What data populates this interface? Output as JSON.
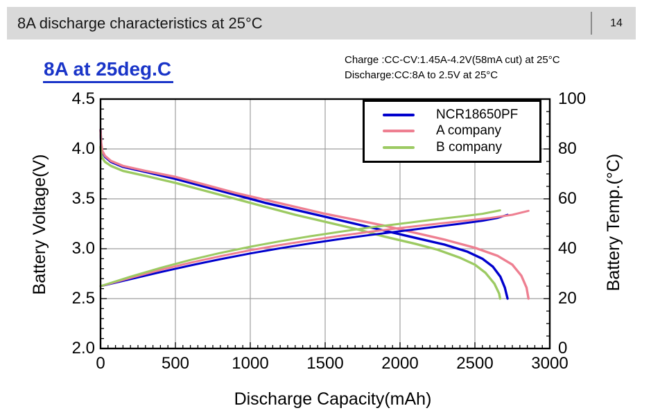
{
  "header": {
    "title": "8A discharge characteristics at 25°C",
    "page_number": "14",
    "bg": "#d9d9d9"
  },
  "chart_header": {
    "title": "8A at 25deg.C",
    "title_color": "#1a35c8",
    "conditions": [
      "Charge :CC-CV:1.45A-4.2V(58mA cut) at 25°C",
      "Discharge:CC:8A to 2.5V at 25°C"
    ]
  },
  "chart_data": {
    "type": "line",
    "title": "8A at 25deg.C",
    "xlabel": "Discharge Capacity(mAh)",
    "ylabel_left": "Battery Voltage(V)",
    "ylabel_right": "Battery Temp.(°C)",
    "xlim": [
      0,
      3000
    ],
    "ylim_left": [
      2.0,
      4.5
    ],
    "ylim_right": [
      0,
      100
    ],
    "xticks": [
      "0",
      "500",
      "1000",
      "1500",
      "2000",
      "2500",
      "3000"
    ],
    "yticks_left": [
      "4.5",
      "4.0",
      "3.5",
      "3.0",
      "2.5",
      "2.0"
    ],
    "yticks_right": [
      "100",
      "80",
      "60",
      "40",
      "20",
      "0"
    ],
    "grid": true,
    "grid_color": "#9e9e9e",
    "legend": {
      "position": "top-right",
      "entries": [
        {
          "label": "NCR18650PF",
          "color": "#0000cd"
        },
        {
          "label": "A company",
          "color": "#ee7f91"
        },
        {
          "label": "B company",
          "color": "#9cca62"
        }
      ]
    },
    "series": [
      {
        "name": "NCR18650PF voltage",
        "axis": "left",
        "color": "#0000cd",
        "width": 3.4,
        "points": [
          [
            0,
            4.19
          ],
          [
            4,
            4.05
          ],
          [
            12,
            3.97
          ],
          [
            30,
            3.92
          ],
          [
            70,
            3.87
          ],
          [
            150,
            3.82
          ],
          [
            300,
            3.77
          ],
          [
            500,
            3.7
          ],
          [
            700,
            3.62
          ],
          [
            900,
            3.54
          ],
          [
            1100,
            3.46
          ],
          [
            1300,
            3.39
          ],
          [
            1500,
            3.32
          ],
          [
            1700,
            3.25
          ],
          [
            1900,
            3.18
          ],
          [
            2100,
            3.11
          ],
          [
            2300,
            3.04
          ],
          [
            2450,
            2.97
          ],
          [
            2550,
            2.9
          ],
          [
            2620,
            2.82
          ],
          [
            2670,
            2.72
          ],
          [
            2700,
            2.61
          ],
          [
            2718,
            2.5
          ]
        ]
      },
      {
        "name": "A company voltage",
        "axis": "left",
        "color": "#ee7f91",
        "width": 3.4,
        "points": [
          [
            0,
            4.19
          ],
          [
            4,
            4.06
          ],
          [
            12,
            3.98
          ],
          [
            30,
            3.93
          ],
          [
            70,
            3.88
          ],
          [
            150,
            3.83
          ],
          [
            300,
            3.78
          ],
          [
            500,
            3.72
          ],
          [
            700,
            3.64
          ],
          [
            900,
            3.56
          ],
          [
            1100,
            3.49
          ],
          [
            1300,
            3.42
          ],
          [
            1500,
            3.35
          ],
          [
            1700,
            3.29
          ],
          [
            1900,
            3.23
          ],
          [
            2100,
            3.16
          ],
          [
            2300,
            3.09
          ],
          [
            2500,
            3.01
          ],
          [
            2650,
            2.93
          ],
          [
            2750,
            2.84
          ],
          [
            2810,
            2.73
          ],
          [
            2845,
            2.61
          ],
          [
            2858,
            2.5
          ]
        ]
      },
      {
        "name": "B company voltage",
        "axis": "left",
        "color": "#9cca62",
        "width": 3.4,
        "points": [
          [
            0,
            4.02
          ],
          [
            4,
            3.95
          ],
          [
            12,
            3.91
          ],
          [
            30,
            3.87
          ],
          [
            70,
            3.83
          ],
          [
            150,
            3.78
          ],
          [
            300,
            3.73
          ],
          [
            500,
            3.66
          ],
          [
            700,
            3.58
          ],
          [
            900,
            3.5
          ],
          [
            1100,
            3.42
          ],
          [
            1300,
            3.34
          ],
          [
            1500,
            3.27
          ],
          [
            1700,
            3.2
          ],
          [
            1900,
            3.12
          ],
          [
            2100,
            3.05
          ],
          [
            2250,
            2.99
          ],
          [
            2400,
            2.91
          ],
          [
            2500,
            2.84
          ],
          [
            2570,
            2.76
          ],
          [
            2630,
            2.65
          ],
          [
            2662,
            2.55
          ],
          [
            2668,
            2.5
          ]
        ]
      },
      {
        "name": "NCR18650PF temperature",
        "axis": "right",
        "color": "#0000cd",
        "width": 3.0,
        "points": [
          [
            0,
            25
          ],
          [
            200,
            27.8
          ],
          [
            400,
            30.6
          ],
          [
            600,
            33.3
          ],
          [
            800,
            35.8
          ],
          [
            1000,
            38.1
          ],
          [
            1200,
            40.2
          ],
          [
            1400,
            42.1
          ],
          [
            1600,
            43.9
          ],
          [
            1800,
            45.5
          ],
          [
            2000,
            47.0
          ],
          [
            2200,
            48.5
          ],
          [
            2400,
            50.0
          ],
          [
            2550,
            51.2
          ],
          [
            2650,
            52.3
          ],
          [
            2718,
            53.6
          ]
        ]
      },
      {
        "name": "A company temperature",
        "axis": "right",
        "color": "#ee7f91",
        "width": 3.0,
        "points": [
          [
            0,
            25
          ],
          [
            200,
            28.3
          ],
          [
            400,
            31.5
          ],
          [
            600,
            34.4
          ],
          [
            800,
            37.0
          ],
          [
            1000,
            39.4
          ],
          [
            1200,
            41.5
          ],
          [
            1400,
            43.4
          ],
          [
            1600,
            45.2
          ],
          [
            1800,
            46.8
          ],
          [
            2000,
            48.3
          ],
          [
            2200,
            49.7
          ],
          [
            2400,
            51.0
          ],
          [
            2600,
            52.3
          ],
          [
            2750,
            53.6
          ],
          [
            2858,
            55.2
          ]
        ]
      },
      {
        "name": "B company temperature",
        "axis": "right",
        "color": "#9cca62",
        "width": 3.0,
        "points": [
          [
            0,
            25
          ],
          [
            200,
            28.8
          ],
          [
            400,
            32.3
          ],
          [
            600,
            35.5
          ],
          [
            800,
            38.3
          ],
          [
            1000,
            40.8
          ],
          [
            1200,
            43.0
          ],
          [
            1400,
            45.0
          ],
          [
            1600,
            46.8
          ],
          [
            1800,
            48.5
          ],
          [
            2000,
            50.0
          ],
          [
            2200,
            51.5
          ],
          [
            2400,
            52.9
          ],
          [
            2550,
            54.0
          ],
          [
            2668,
            55.4
          ]
        ]
      }
    ]
  }
}
